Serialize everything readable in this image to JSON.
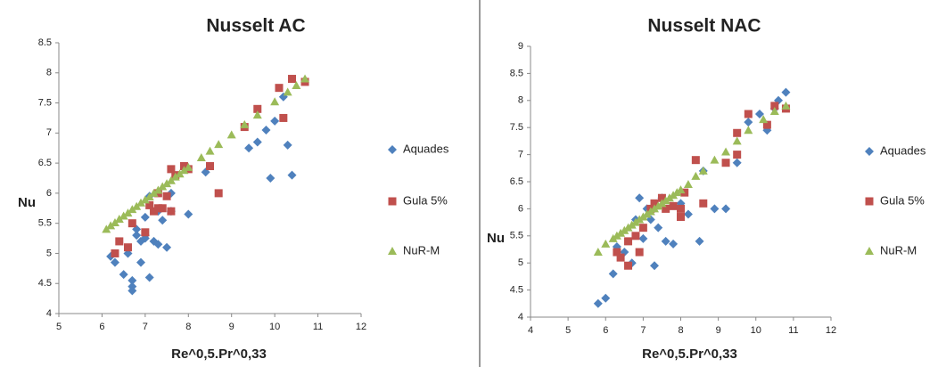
{
  "chart_data": [
    {
      "type": "scatter",
      "title": "Nusselt AC",
      "x_label": "Re^0,5.Pr^0,33",
      "y_label": "Nu",
      "xlim": [
        5,
        12
      ],
      "xticks": [
        5,
        6,
        7,
        8,
        9,
        10,
        11,
        12
      ],
      "ylim": [
        4,
        8.5
      ],
      "yticks": [
        4,
        4.5,
        5,
        5.5,
        6,
        6.5,
        7,
        7.5,
        8,
        8.5
      ],
      "grid": false,
      "series": [
        {
          "name": "Aquades",
          "color": "#4f81bd",
          "marker": "diamond",
          "x": [
            6.2,
            6.3,
            6.5,
            6.6,
            6.7,
            6.7,
            6.7,
            6.8,
            6.9,
            6.9,
            7.0,
            7.0,
            7.1,
            7.2,
            7.3,
            7.4,
            7.5,
            7.6,
            8.0,
            7.1,
            7.3,
            7.6,
            8.4,
            9.4,
            9.6,
            9.8,
            9.9,
            10.3,
            10.4,
            10.0,
            10.2,
            6.8,
            7.0
          ],
          "values": [
            4.95,
            4.85,
            4.65,
            5.0,
            4.45,
            4.38,
            4.55,
            5.3,
            4.85,
            5.2,
            5.3,
            5.25,
            4.6,
            5.2,
            5.15,
            5.55,
            5.1,
            5.7,
            5.65,
            5.95,
            5.7,
            6.0,
            6.35,
            6.75,
            6.85,
            7.05,
            6.25,
            6.8,
            6.3,
            7.2,
            7.6,
            5.4,
            5.6
          ]
        },
        {
          "name": "Gula 5%",
          "color": "#c0504d",
          "marker": "square",
          "x": [
            6.3,
            6.4,
            6.6,
            6.7,
            7.0,
            7.2,
            7.3,
            7.4,
            7.5,
            7.6,
            7.6,
            7.7,
            7.9,
            8.0,
            8.5,
            8.7,
            9.3,
            9.6,
            10.1,
            10.2,
            10.4,
            10.7,
            7.3,
            7.1
          ],
          "values": [
            5.0,
            5.2,
            5.1,
            5.5,
            5.35,
            5.7,
            5.75,
            5.75,
            5.95,
            5.7,
            6.4,
            6.3,
            6.45,
            6.4,
            6.45,
            6.0,
            7.1,
            7.4,
            7.75,
            7.25,
            7.9,
            7.85,
            6.0,
            5.8
          ]
        },
        {
          "name": "NuR-M",
          "color": "#9bbb59",
          "marker": "triangle",
          "x": [
            6.1,
            6.2,
            6.3,
            6.4,
            6.5,
            6.6,
            6.7,
            6.8,
            6.9,
            7.0,
            7.1,
            7.2,
            7.3,
            7.4,
            7.5,
            7.6,
            7.7,
            7.8,
            7.9,
            8.0,
            8.3,
            8.5,
            8.7,
            9.0,
            9.3,
            9.6,
            10.0,
            10.3,
            10.5,
            10.7
          ],
          "values": [
            5.4,
            5.46,
            5.51,
            5.57,
            5.62,
            5.67,
            5.73,
            5.78,
            5.84,
            5.89,
            5.94,
            6.0,
            6.05,
            6.11,
            6.16,
            6.21,
            6.27,
            6.32,
            6.38,
            6.43,
            6.59,
            6.7,
            6.81,
            6.97,
            7.14,
            7.3,
            7.52,
            7.68,
            7.79,
            7.9
          ]
        }
      ]
    },
    {
      "type": "scatter",
      "title": "Nusselt NAC",
      "x_label": "Re^0,5.Pr^0,33",
      "y_label": "Nu",
      "xlim": [
        4,
        12
      ],
      "xticks": [
        4,
        5,
        6,
        7,
        8,
        9,
        10,
        11,
        12
      ],
      "ylim": [
        4,
        9
      ],
      "yticks": [
        4,
        4.5,
        5,
        5.5,
        6,
        6.5,
        7,
        7.5,
        8,
        8.5,
        9
      ],
      "grid": false,
      "series": [
        {
          "name": "Aquades",
          "color": "#4f81bd",
          "marker": "diamond",
          "x": [
            5.8,
            6.0,
            6.2,
            6.3,
            6.5,
            6.7,
            6.9,
            7.0,
            7.2,
            7.3,
            7.4,
            7.5,
            7.6,
            7.8,
            8.0,
            8.2,
            8.5,
            8.6,
            8.9,
            9.2,
            9.5,
            9.8,
            10.1,
            10.3,
            10.5,
            10.6,
            10.8,
            6.8,
            7.1
          ],
          "values": [
            4.25,
            4.35,
            4.8,
            5.3,
            5.2,
            5.0,
            6.2,
            5.45,
            5.8,
            4.95,
            5.65,
            6.2,
            5.4,
            5.35,
            6.1,
            5.9,
            5.4,
            6.7,
            6.0,
            6.0,
            6.85,
            7.6,
            7.75,
            7.45,
            7.85,
            8.0,
            8.15,
            5.8,
            6.0
          ]
        },
        {
          "name": "Gula 5%",
          "color": "#c0504d",
          "marker": "square",
          "x": [
            6.3,
            6.4,
            6.6,
            6.6,
            6.8,
            6.9,
            7.0,
            7.2,
            7.3,
            7.6,
            7.8,
            8.0,
            8.1,
            8.4,
            8.6,
            9.2,
            9.5,
            9.5,
            9.8,
            10.3,
            10.5,
            10.8,
            7.5,
            8.0
          ],
          "values": [
            5.2,
            5.1,
            4.95,
            5.4,
            5.5,
            5.2,
            5.65,
            6.0,
            6.1,
            6.0,
            6.05,
            5.85,
            6.3,
            6.9,
            6.1,
            6.85,
            7.0,
            7.4,
            7.75,
            7.55,
            7.9,
            7.85,
            6.2,
            6.0
          ]
        },
        {
          "name": "NuR-M",
          "color": "#9bbb59",
          "marker": "triangle",
          "x": [
            5.8,
            6.0,
            6.2,
            6.3,
            6.4,
            6.5,
            6.6,
            6.7,
            6.8,
            6.9,
            7.0,
            7.1,
            7.2,
            7.3,
            7.4,
            7.5,
            7.6,
            7.7,
            7.8,
            7.9,
            8.0,
            8.2,
            8.4,
            8.6,
            8.9,
            9.2,
            9.5,
            9.8,
            10.2,
            10.5,
            10.8
          ],
          "values": [
            5.2,
            5.35,
            5.45,
            5.5,
            5.55,
            5.6,
            5.65,
            5.7,
            5.75,
            5.8,
            5.85,
            5.9,
            5.95,
            6.0,
            6.05,
            6.1,
            6.15,
            6.2,
            6.25,
            6.3,
            6.35,
            6.45,
            6.6,
            6.7,
            6.9,
            7.05,
            7.25,
            7.45,
            7.65,
            7.8,
            7.9
          ]
        }
      ]
    }
  ]
}
